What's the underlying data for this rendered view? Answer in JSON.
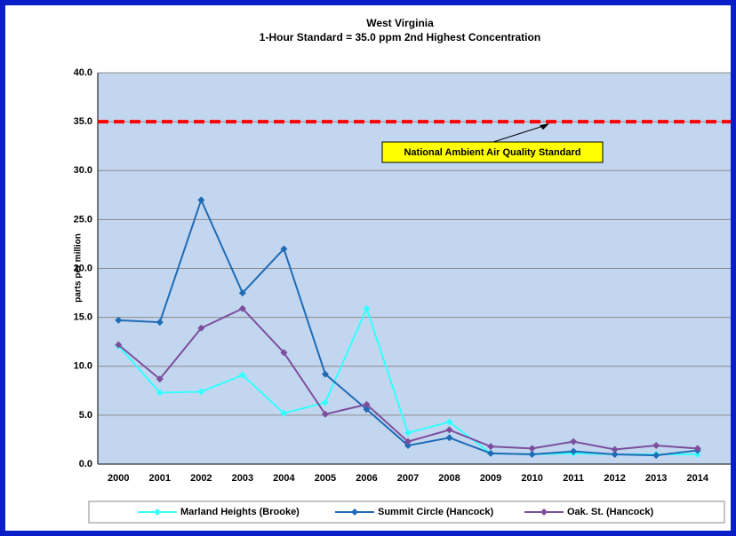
{
  "chart_data": {
    "type": "line",
    "title": "West Virginia",
    "subtitle": "1-Hour Standard = 35.0 ppm 2nd Highest Concentration",
    "y_label": "parts per million",
    "categories": [
      "2000",
      "2001",
      "2002",
      "2003",
      "2004",
      "2005",
      "2006",
      "2007",
      "2008",
      "2009",
      "2010",
      "2011",
      "2012",
      "2013",
      "2014"
    ],
    "series": [
      {
        "name": "Marland Heights (Brooke)",
        "color": "#33ffff",
        "values": [
          12.1,
          7.3,
          7.4,
          9.1,
          5.2,
          6.3,
          15.9,
          3.2,
          4.3,
          1.1,
          1.0,
          1.1,
          1.0,
          1.0,
          1.0
        ]
      },
      {
        "name": "Summit Circle (Hancock)",
        "color": "#1f6bb5",
        "values": [
          14.7,
          14.5,
          27.0,
          17.5,
          22.0,
          9.2,
          5.6,
          1.9,
          2.7,
          1.1,
          1.0,
          1.3,
          1.0,
          0.9,
          1.4
        ]
      },
      {
        "name": "Oak. St. (Hancock)",
        "color": "#7b4f9d",
        "values": [
          12.2,
          8.7,
          13.9,
          15.9,
          11.4,
          5.1,
          6.1,
          2.3,
          3.5,
          1.8,
          1.6,
          2.3,
          1.5,
          1.9,
          1.6
        ]
      }
    ],
    "standard_line": 35,
    "standard_color": "#ff0000",
    "annotation": "National Ambient Air Quality Standard",
    "ylim": [
      0,
      40
    ],
    "yticks": [
      {
        "value": 0,
        "label": "0.0"
      },
      {
        "value": 5,
        "label": "5.0"
      },
      {
        "value": 10,
        "label": "10.0"
      },
      {
        "value": 15,
        "label": "15.0"
      },
      {
        "value": 20,
        "label": "20.0"
      },
      {
        "value": 25,
        "label": "25.0"
      },
      {
        "value": 30,
        "label": "30.0"
      },
      {
        "value": 35,
        "label": "35.0"
      },
      {
        "value": 40,
        "label": "40.0"
      }
    ],
    "grid": true
  }
}
